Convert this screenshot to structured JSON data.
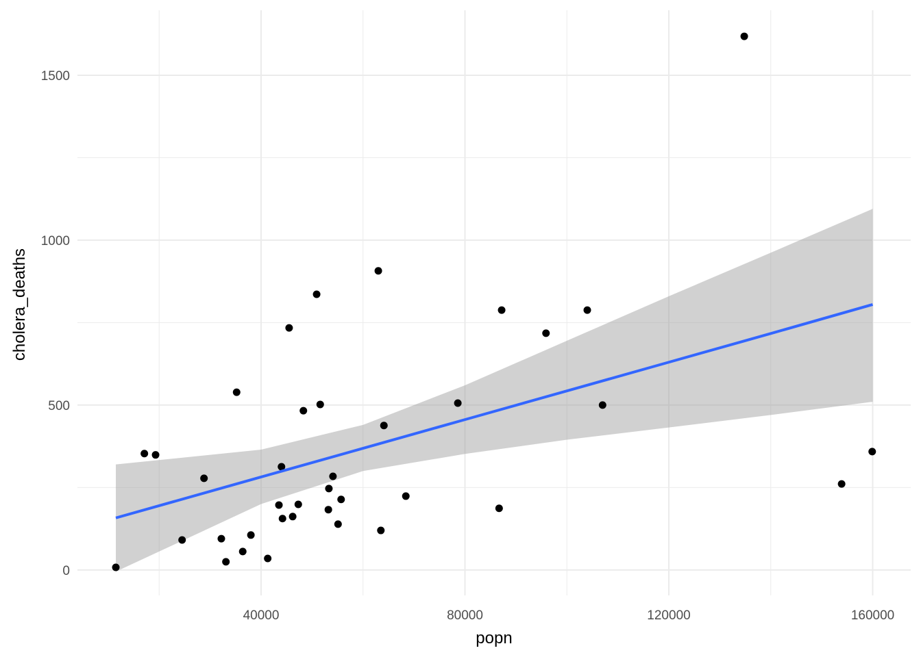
{
  "chart_data": {
    "type": "scatter",
    "title": "",
    "xlabel": "popn",
    "ylabel": "cholera_deaths",
    "xlim": [
      3967,
      167459
    ],
    "ylim": [
      -77,
      1697
    ],
    "x_major_ticks": [
      40000,
      80000,
      120000,
      160000
    ],
    "x_minor_ticks": [
      20000,
      60000,
      100000,
      140000
    ],
    "y_major_ticks": [
      0,
      500,
      1000,
      1500
    ],
    "y_minor_ticks": [
      250,
      750,
      1250
    ],
    "x_tick_labels": [
      "40000",
      "80000",
      "120000",
      "160000"
    ],
    "y_tick_labels": [
      "0",
      "500",
      "1000",
      "1500"
    ],
    "grid": true,
    "colors": {
      "points": "#000000",
      "line": "#3366FF",
      "ribbon": "#999999",
      "grid": "#EBEBEB"
    },
    "points": [
      [
        11500,
        8
      ],
      [
        17100,
        353
      ],
      [
        19300,
        349
      ],
      [
        24500,
        91
      ],
      [
        28800,
        278
      ],
      [
        32200,
        95
      ],
      [
        33100,
        25
      ],
      [
        35200,
        539
      ],
      [
        36400,
        56
      ],
      [
        38000,
        106
      ],
      [
        41300,
        35
      ],
      [
        43500,
        197
      ],
      [
        44000,
        313
      ],
      [
        44200,
        156
      ],
      [
        45500,
        734
      ],
      [
        46200,
        162
      ],
      [
        47300,
        199
      ],
      [
        48300,
        483
      ],
      [
        50900,
        836
      ],
      [
        51600,
        502
      ],
      [
        53200,
        183
      ],
      [
        53300,
        247
      ],
      [
        54100,
        284
      ],
      [
        55100,
        139
      ],
      [
        55700,
        214
      ],
      [
        63000,
        907
      ],
      [
        63500,
        120
      ],
      [
        64100,
        438
      ],
      [
        68400,
        224
      ],
      [
        78600,
        506
      ],
      [
        86700,
        187
      ],
      [
        87200,
        788
      ],
      [
        95900,
        718
      ],
      [
        104000,
        788
      ],
      [
        107000,
        500
      ],
      [
        134800,
        1618
      ],
      [
        153900,
        261
      ],
      [
        159900,
        359
      ]
    ],
    "smooth": {
      "method": "lm",
      "x": [
        11500,
        40000,
        60000,
        80000,
        100000,
        120000,
        140000,
        160000
      ],
      "fit": [
        158,
        282,
        369,
        456,
        543,
        630,
        717,
        805
      ],
      "lower": [
        -5,
        200,
        300,
        352,
        395,
        432,
        470,
        510
      ],
      "upper": [
        320,
        365,
        440,
        560,
        695,
        830,
        962,
        1095
      ]
    }
  }
}
